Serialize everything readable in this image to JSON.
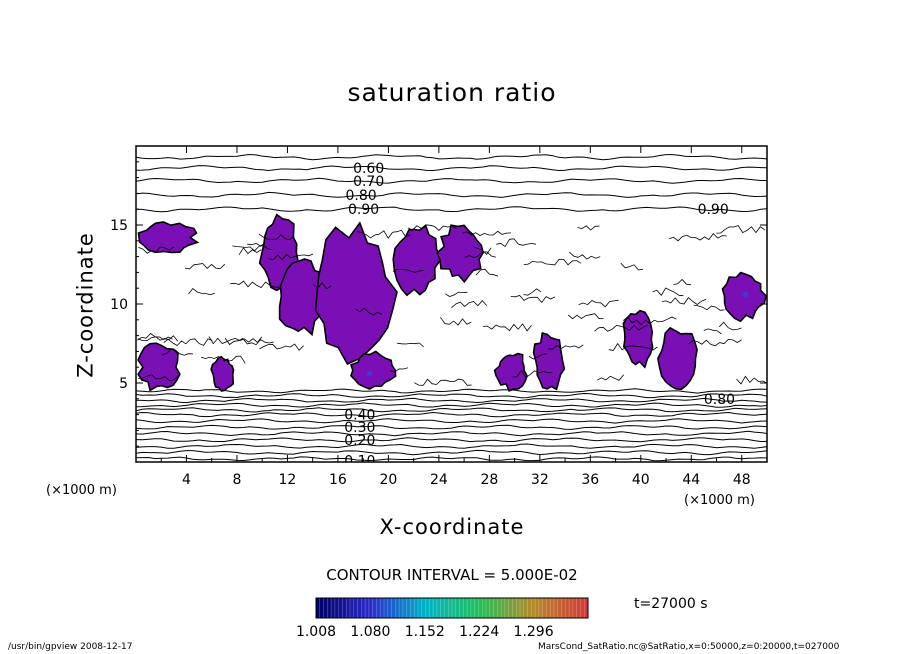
{
  "chart_data": {
    "type": "contour",
    "title": "saturation ratio",
    "xlabel": "X-coordinate",
    "ylabel": "Z-coordinate",
    "x_unit_label": "(×1000 m)",
    "xlim": [
      0,
      50
    ],
    "ylim": [
      0,
      20
    ],
    "x_ticks": [
      "4",
      "8",
      "12",
      "16",
      "20",
      "24",
      "28",
      "32",
      "36",
      "40",
      "44",
      "48"
    ],
    "y_ticks": [
      "5",
      "10",
      "15"
    ],
    "contour_labels": [
      {
        "text": "0.60",
        "x": 17.2,
        "z": 18.6
      },
      {
        "text": "0.70",
        "x": 17.2,
        "z": 17.8
      },
      {
        "text": "0.80",
        "x": 16.6,
        "z": 16.9
      },
      {
        "text": "0.90",
        "x": 16.8,
        "z": 16.0
      },
      {
        "text": "0.90",
        "x": 44.5,
        "z": 16.0
      },
      {
        "text": "0.80",
        "x": 45.0,
        "z": 4.0
      },
      {
        "text": "0.40",
        "x": 16.5,
        "z": 3.0
      },
      {
        "text": "0.30",
        "x": 16.5,
        "z": 2.2
      },
      {
        "text": "0.20",
        "x": 16.5,
        "z": 1.4
      },
      {
        "text": "0.10",
        "x": 16.5,
        "z": 0.1
      }
    ],
    "stable_levels_z": [
      19.3,
      18.6,
      17.8,
      16.9,
      16.0,
      4.5,
      4.2,
      3.9,
      3.6,
      3.3,
      3.0,
      2.6,
      2.2,
      1.8,
      1.4,
      1.0,
      0.6,
      0.2
    ],
    "supersaturated_regions": [
      {
        "x": [
          0.2,
          4.8
        ],
        "z": [
          13.2,
          15.2
        ]
      },
      {
        "x": [
          9.8,
          13.0
        ],
        "z": [
          11.0,
          15.5
        ]
      },
      {
        "x": [
          11.2,
          15.0
        ],
        "z": [
          8.0,
          13.0
        ]
      },
      {
        "x": [
          14.0,
          20.5
        ],
        "z": [
          6.5,
          15.0
        ]
      },
      {
        "x": [
          20.5,
          24.0
        ],
        "z": [
          10.5,
          15.2
        ]
      },
      {
        "x": [
          24.0,
          27.5
        ],
        "z": [
          11.5,
          15.0
        ]
      },
      {
        "x": [
          0.2,
          3.5
        ],
        "z": [
          4.5,
          7.5
        ]
      },
      {
        "x": [
          6.0,
          7.8
        ],
        "z": [
          4.5,
          6.6
        ]
      },
      {
        "x": [
          17.0,
          20.5
        ],
        "z": [
          4.6,
          7.0
        ]
      },
      {
        "x": [
          28.5,
          31.0
        ],
        "z": [
          4.6,
          7.0
        ]
      },
      {
        "x": [
          31.5,
          34.0
        ],
        "z": [
          4.6,
          8.2
        ]
      },
      {
        "x": [
          38.5,
          41.0
        ],
        "z": [
          6.0,
          9.5
        ]
      },
      {
        "x": [
          41.5,
          44.5
        ],
        "z": [
          4.6,
          8.5
        ]
      },
      {
        "x": [
          46.5,
          49.8
        ],
        "z": [
          9.0,
          12.0
        ]
      }
    ],
    "colorbar": {
      "ticks": [
        "1.008",
        "1.080",
        "1.152",
        "1.224",
        "1.296"
      ],
      "range": [
        1.008,
        1.368
      ],
      "colors": [
        "#000066",
        "#2c2ccf",
        "#00b4c8",
        "#22c05a",
        "#b38a2a",
        "#d43a3a"
      ]
    },
    "fill_color": "#7a0fb5",
    "contour_interval": "CONTOUR INTERVAL = 5.000E-02"
  },
  "time_label": "t=27000 s",
  "footer": {
    "left": "/usr/bin/gpview  2008-12-17",
    "right": "MarsCond_SatRatio.nc@SatRatio,x=0:50000,z=0:20000,t=027000"
  }
}
